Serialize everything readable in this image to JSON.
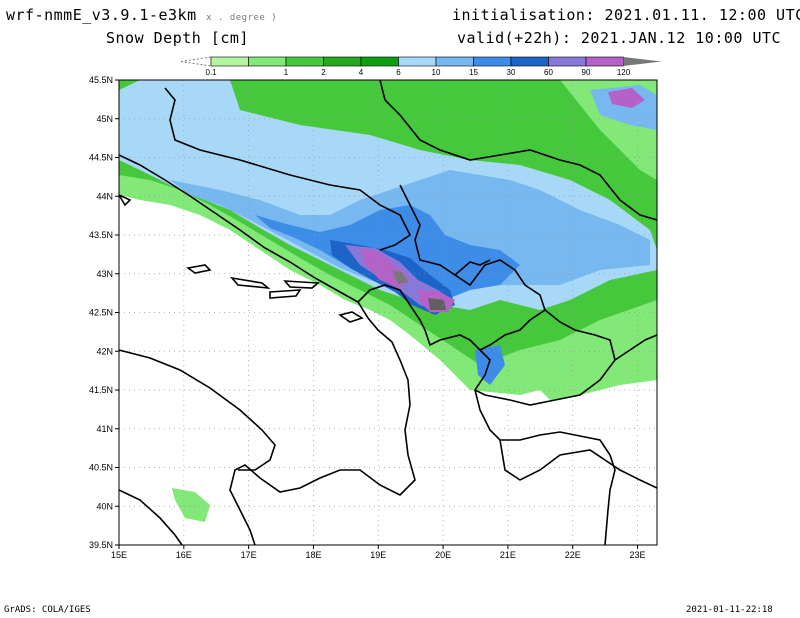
{
  "header": {
    "model": "wrf-nmmE_v3.9.1-e3km",
    "model_units": "x . degree )",
    "field": "Snow Depth [cm]",
    "init_label": "initialisation: 2021.01.11.  12:00 UTC",
    "valid_label": "valid(+22h): 2021.JAN.12 10:00 UTC"
  },
  "legend": {
    "levels": [
      "0.1",
      "1",
      "2",
      "4",
      "6",
      "10",
      "15",
      "30",
      "60",
      "90",
      "120"
    ],
    "colors": [
      "#b4f5a2",
      "#82e878",
      "#46c83c",
      "#28a820",
      "#0ea010",
      "#a8d8f8",
      "#78b8f0",
      "#3c8ce8",
      "#1c64c8",
      "#8a78d8",
      "#b462c8",
      "#787878"
    ]
  },
  "map": {
    "lat_labels": [
      "45.5N",
      "45N",
      "44.5N",
      "44N",
      "43.5N",
      "43N",
      "42.5N",
      "42N",
      "41.5N",
      "41N",
      "40.5N",
      "40N",
      "39.5N"
    ],
    "lon_labels": [
      "15E",
      "16E",
      "17E",
      "18E",
      "19E",
      "20E",
      "21E",
      "22E",
      "23E"
    ],
    "lat_range": [
      39.5,
      45.5
    ],
    "lon_range": [
      15,
      23.3
    ],
    "grid": "dotted"
  },
  "footer": {
    "credit": "GrADS: COLA/IGES",
    "timestamp": "2021-01-11-22:18"
  }
}
